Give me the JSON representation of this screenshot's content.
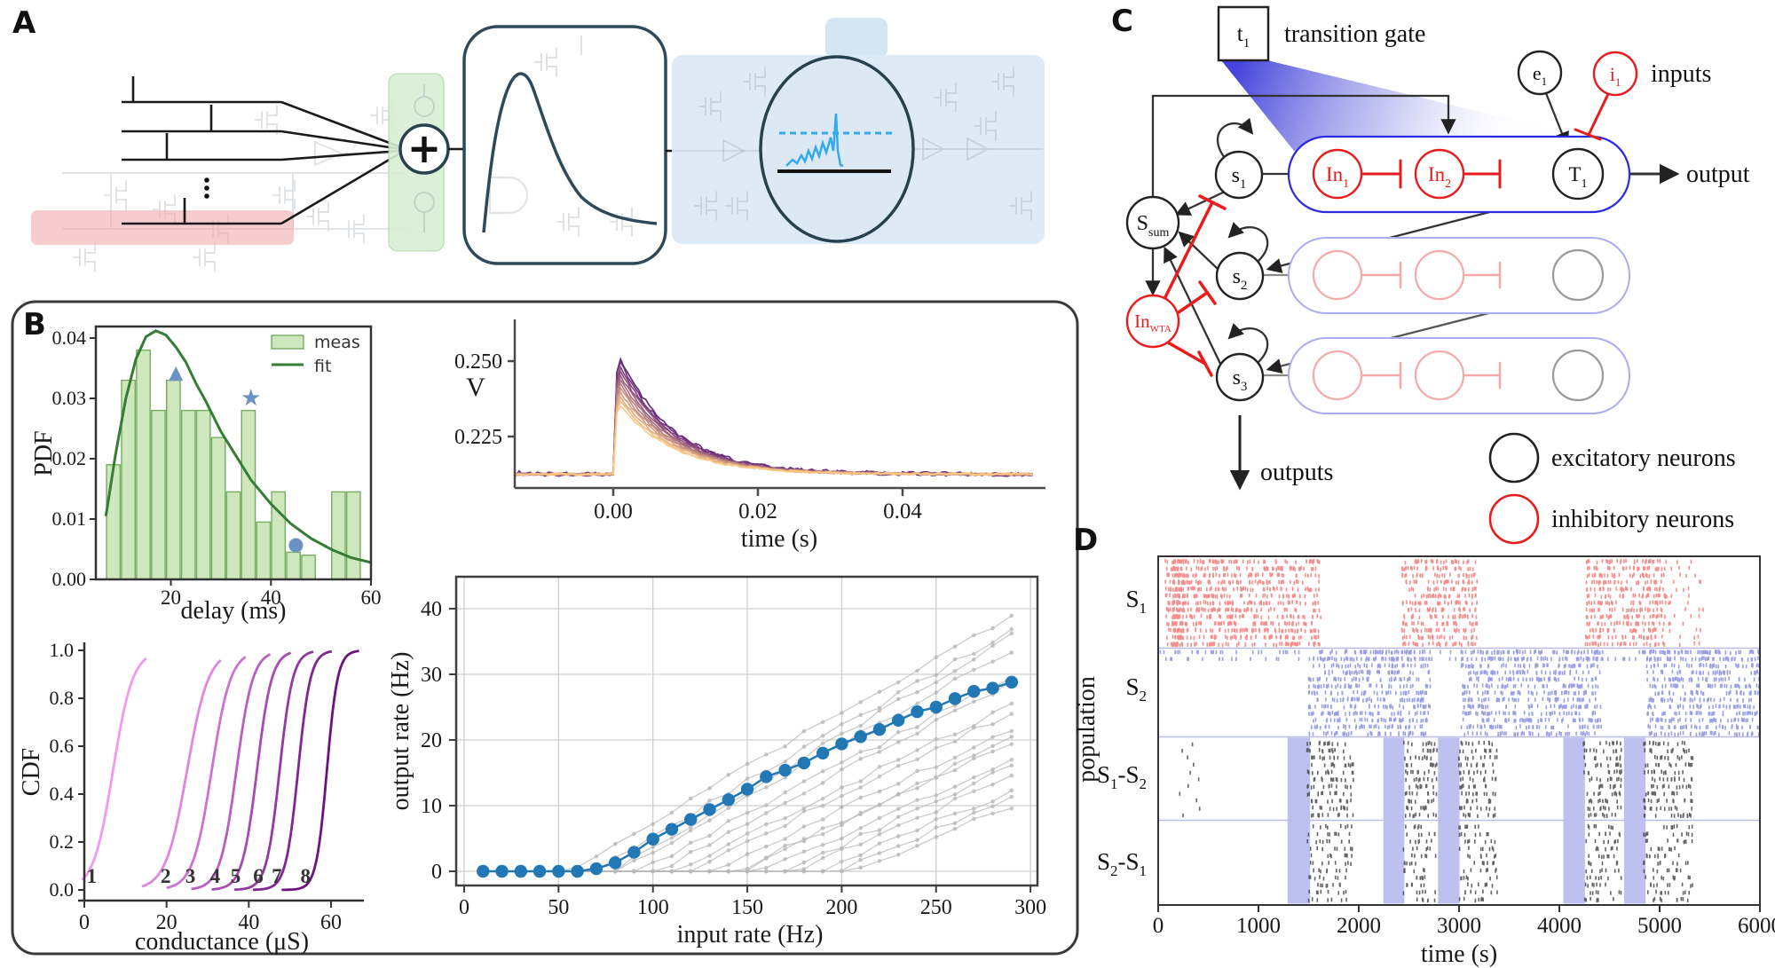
{
  "page": {
    "background": "#ffffff"
  },
  "panel_labels": {
    "a": "A",
    "b": "B",
    "c": "C",
    "d": "D"
  },
  "panel_a": {
    "plus_icon": "+",
    "colors": {
      "red_box": "#f0a3a8",
      "green_box": "#d9eed4",
      "green_edge": "#a5d49c",
      "blue_box": "#dce9f5",
      "outline_teal": "#2c4a5a",
      "trace_blue": "#33aaee",
      "faded_gray": "#97a1aa"
    }
  },
  "panel_c": {
    "transition_gate_label": "transition gate",
    "inputs_label": "inputs",
    "output_label": "output",
    "outputs_label": "outputs",
    "legend": {
      "excitatory": "excitatory neurons",
      "inhibitory": "inhibitory neurons"
    },
    "colors": {
      "excitatory": "#222222",
      "inhibitory": "#e81c1c",
      "capsule": "#2a2ae0",
      "capsule_faded": "#ababf2",
      "node_faded_red": "#f5a9a9",
      "node_faded_gray": "#9a9a9a",
      "cone": "#3b3bd9"
    },
    "nodes": {
      "t1": {
        "base": "t",
        "sub": "1"
      },
      "e1": {
        "base": "e",
        "sub": "1"
      },
      "i1": {
        "base": "i",
        "sub": "1"
      },
      "s1": {
        "base": "s",
        "sub": "1"
      },
      "s2": {
        "base": "s",
        "sub": "2"
      },
      "s3": {
        "base": "s",
        "sub": "3"
      },
      "ssum": {
        "base": "S",
        "sub": "sum"
      },
      "inwta": {
        "base": "In",
        "sub": "WTA"
      },
      "in1": {
        "base": "In",
        "sub": "1"
      },
      "in2": {
        "base": "In",
        "sub": "2"
      },
      "t_big1": {
        "base": "T",
        "sub": "1"
      }
    }
  },
  "chart_data": [
    {
      "id": "delay_pdf",
      "type": "bar",
      "xlabel": "delay (ms)",
      "ylabel": "PDF",
      "bin_start": 7,
      "bin_width": 3,
      "values": [
        0.019,
        0.033,
        0.038,
        0.028,
        0.033,
        0.028,
        0.028,
        0.0235,
        0.0145,
        0.028,
        0.0095,
        0.0145,
        0.0045,
        0.004,
        0,
        0.0145,
        0.0145
      ],
      "xlim": [
        5,
        60
      ],
      "ylim": [
        0,
        0.042
      ],
      "xticks": [
        20,
        40,
        60
      ],
      "yticks": [
        "0.00",
        "0.01",
        "0.02",
        "0.03",
        "0.04"
      ],
      "bar_fill": "#cfe7bd",
      "bar_edge": "#76ab62",
      "fit_color": "#357d35",
      "legend": [
        {
          "label": "meas",
          "type": "patch"
        },
        {
          "label": "fit",
          "type": "line"
        }
      ],
      "legend_loc": "upper right",
      "fit_curve": [
        [
          7,
          0.0105
        ],
        [
          9,
          0.021
        ],
        [
          11,
          0.03
        ],
        [
          13,
          0.0365
        ],
        [
          15,
          0.0402
        ],
        [
          17,
          0.0412
        ],
        [
          19,
          0.0405
        ],
        [
          21,
          0.0385
        ],
        [
          23,
          0.036
        ],
        [
          25,
          0.0325
        ],
        [
          27,
          0.0295
        ],
        [
          30,
          0.0245
        ],
        [
          33,
          0.0205
        ],
        [
          36,
          0.0165
        ],
        [
          40,
          0.0125
        ],
        [
          44,
          0.0092
        ],
        [
          48,
          0.0068
        ],
        [
          52,
          0.005
        ],
        [
          56,
          0.0036
        ],
        [
          60,
          0.0028
        ]
      ],
      "markers": [
        {
          "glyph": "▲",
          "x": 21,
          "y": 0.0345
        },
        {
          "glyph": "★",
          "x": 36,
          "y": 0.03
        },
        {
          "glyph": "●",
          "x": 45,
          "y": 0.006
        }
      ],
      "marker_color": "#6a93c3"
    },
    {
      "id": "epsp_traces",
      "type": "line",
      "xlabel": "time (s)",
      "ylabel": "V",
      "xticks": [
        "0.00",
        "0.02",
        "0.04"
      ],
      "yticks": [
        "0.250",
        "0.225"
      ],
      "xlim": [
        -0.0135,
        0.0585
      ],
      "baseline": 0.2125,
      "tau_s": 0.0075,
      "n_traces": 12,
      "peak_top": 0.2565,
      "peak_bottom": 0.2385,
      "color_top": "#5e1f7a",
      "color_bottom": "#fec87f"
    },
    {
      "id": "conductance_cdf",
      "type": "line",
      "xlabel": "conductance (μS)",
      "ylabel": "CDF",
      "xticks": [
        0,
        20,
        40,
        60
      ],
      "yticks": [
        "0.0",
        "0.2",
        "0.4",
        "0.6",
        "0.8",
        "1.0"
      ],
      "xlim": [
        -1,
        67
      ],
      "ylim": [
        0,
        1
      ],
      "curve_labels": [
        "1",
        "2",
        "3",
        "4",
        "5",
        "6",
        "7",
        "8"
      ],
      "midpoints": [
        7,
        25,
        31,
        37,
        42,
        47.5,
        52,
        59
      ],
      "widths": [
        2.4,
        2.6,
        2.3,
        2.0,
        1.8,
        1.6,
        1.5,
        1.3
      ],
      "color_first": "#f398f0",
      "color_last": "#6d1380"
    },
    {
      "id": "transfer_function",
      "type": "scatter",
      "xlabel": "input rate (Hz)",
      "ylabel": "output rate (Hz)",
      "xticks": [
        0,
        50,
        100,
        150,
        200,
        250,
        300
      ],
      "yticks": [
        0,
        10,
        20,
        30,
        40
      ],
      "xlim": [
        -5,
        305
      ],
      "ylim": [
        -2,
        43
      ],
      "grid": true,
      "mean_color": "#2277b5",
      "gray_color": "#b9b9b9",
      "mean_series": {
        "x_start": 10,
        "x_step": 10,
        "values": [
          0,
          0,
          0,
          0,
          0,
          0,
          0.4,
          1.3,
          2.9,
          4.9,
          6.4,
          7.9,
          9.4,
          10.9,
          12.5,
          14.4,
          15.4,
          16.5,
          18.0,
          19.4,
          20.5,
          21.6,
          23.0,
          24.3,
          25.0,
          26.3,
          27.4,
          27.9,
          28.8
        ]
      },
      "gray_traces": {
        "count": 17,
        "threshold_min": 58,
        "threshold_max": 208,
        "gain_max": 0.205,
        "gain_min": 0.13,
        "clip": 42
      }
    },
    {
      "id": "population_raster",
      "type": "raster",
      "xlabel": "time (s)",
      "ylabel": "population",
      "xticks": [
        0,
        1000,
        2000,
        3000,
        4000,
        5000,
        6000
      ],
      "xlim": [
        0,
        6000
      ],
      "colors": {
        "s1": "#f47272",
        "s2": "#7f88de",
        "diff": "#3f3f3f",
        "transition_bar": "#b7baee",
        "divider": "#b9bdee"
      },
      "transition_bars": [
        [
          1290,
          1515
        ],
        [
          2245,
          2455
        ],
        [
          2790,
          3005
        ],
        [
          4040,
          4255
        ],
        [
          4645,
          4860
        ]
      ],
      "bands": [
        {
          "label_parts": [
            [
              "S",
              "1"
            ]
          ],
          "color_key": "s1",
          "bursts": [
            [
              60,
              1620
            ],
            [
              2430,
              3180
            ],
            [
              4260,
              5060
            ]
          ],
          "dense_stripe": [
            140,
            260
          ],
          "sparse": [
            [
              5060,
              5450
            ]
          ]
        },
        {
          "label_parts": [
            [
              "S",
              "2"
            ]
          ],
          "color_key": "s2",
          "bursts": [
            [
              1500,
              2720
            ],
            [
              3020,
              4420
            ],
            [
              4870,
              6000
            ]
          ],
          "full_sparse_rows": 2
        },
        {
          "label_parts": [
            [
              "S",
              "1"
            ],
            [
              "-S",
              "2"
            ]
          ],
          "color_key": "diff",
          "bursts": [
            [
              1480,
              1950
            ],
            [
              2440,
              2780
            ],
            [
              2990,
              3380
            ],
            [
              4240,
              4620
            ],
            [
              4840,
              5330
            ]
          ],
          "sparse": [
            [
              200,
              420
            ]
          ]
        },
        {
          "label_parts": [
            [
              "S",
              "2"
            ],
            [
              "-S",
              "1"
            ]
          ],
          "color_key": "diff",
          "bursts": [
            [
              1480,
              1950
            ],
            [
              2440,
              2780
            ],
            [
              2990,
              3380
            ],
            [
              4240,
              4620
            ],
            [
              4840,
              5330
            ]
          ],
          "sparse": []
        }
      ]
    }
  ]
}
